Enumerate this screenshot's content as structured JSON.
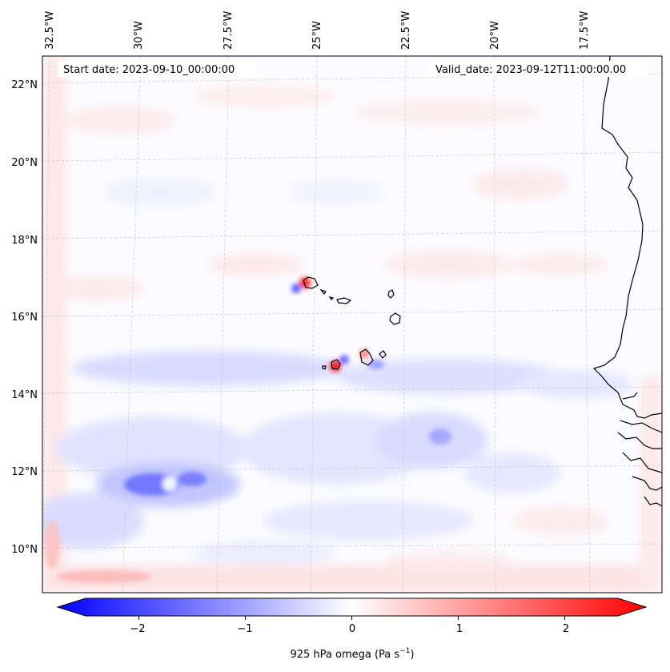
{
  "map": {
    "start_date_text": "Start date: 2023-09-10_00:00:00",
    "valid_date_text": "Valid_date: 2023-09-12T11:00:00.00",
    "lon_labels": [
      "32.5°W",
      "30°W",
      "27.5°W",
      "25°W",
      "22.5°W",
      "20°W",
      "17.5°W"
    ],
    "lat_labels": [
      "22°N",
      "20°N",
      "18°N",
      "16°N",
      "14°N",
      "12°N",
      "10°N"
    ],
    "extent": {
      "lon_min": -33.0,
      "lon_max": -15.6,
      "lat_min": 8.9,
      "lat_max": 22.8
    },
    "gridlines": true,
    "field": "925 hPa omega",
    "colormap": "bwr"
  },
  "colorbar": {
    "label": "925 hPa omega (Pa s",
    "label_sup": "−1",
    "label_end": ")",
    "ticks": [
      "−2",
      "−1",
      "0",
      "1",
      "2"
    ],
    "tick_values": [
      -2,
      -1,
      0,
      1,
      2
    ],
    "vmin": -2.5,
    "vmax": 2.5,
    "extend": "both",
    "color_low": "#0000ff",
    "color_mid": "#ffffff",
    "color_high": "#ff0000"
  }
}
